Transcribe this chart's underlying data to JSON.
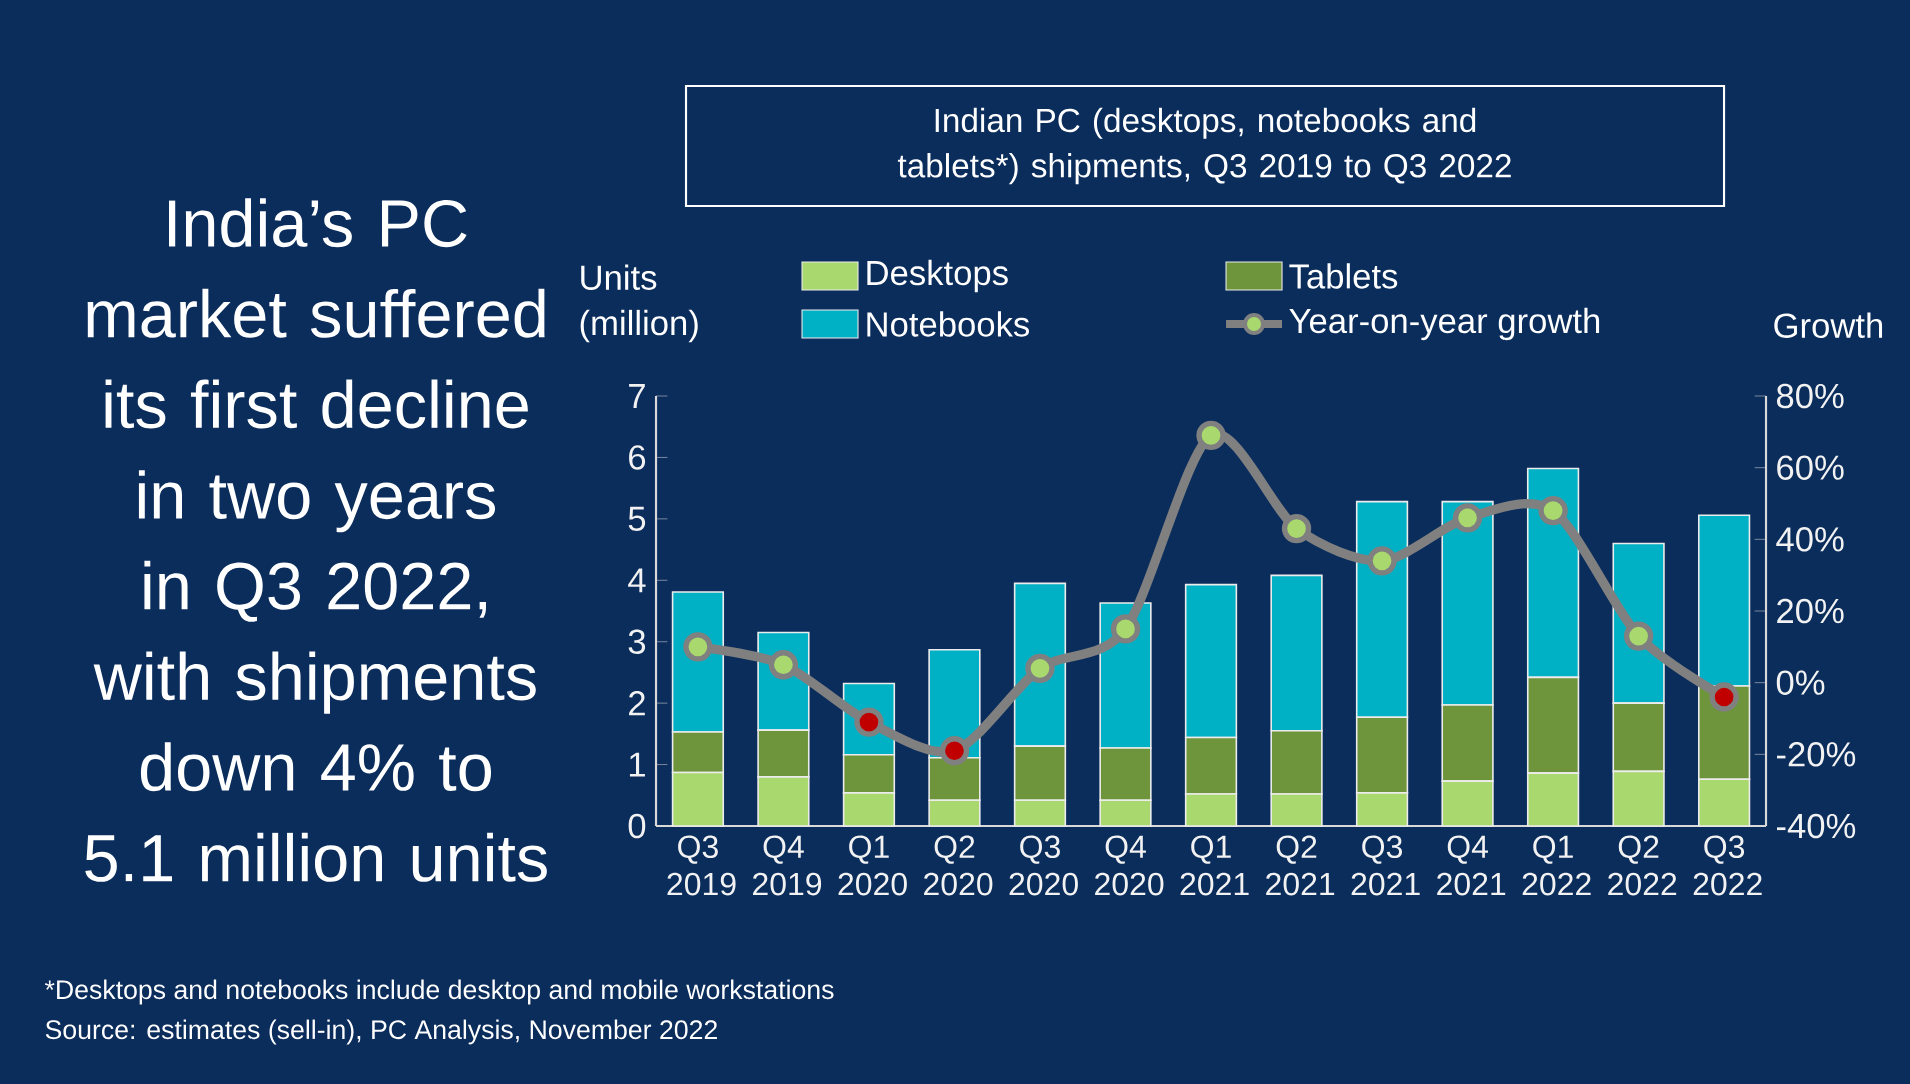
{
  "chart_data": {
    "type": "bar",
    "title": "Indian PC (desktops, notebooks and tablets*) shipments, Q3 2019 to Q3 2022",
    "subtitle": "India’s PC market suffered its first decline in two years in Q3 2022, with shipments down 4% to 5.1 million units",
    "ylabel": "Units (million)",
    "y2label": "Growth",
    "categories": [
      "Q3 2019",
      "Q4 2019",
      "Q1 2020",
      "Q2 2020",
      "Q3 2020",
      "Q4 2020",
      "Q1 2021",
      "Q2 2021",
      "Q3 2021",
      "Q4 2021",
      "Q1 2022",
      "Q2 2022",
      "Q3 2022"
    ],
    "stacked": true,
    "series": [
      {
        "name": "Desktops",
        "color": "#a9d86e",
        "values": [
          0.87,
          0.8,
          0.54,
          0.42,
          0.42,
          0.42,
          0.52,
          0.52,
          0.54,
          0.73,
          0.86,
          0.89,
          0.76
        ]
      },
      {
        "name": "Tablets",
        "color": "#6e953b",
        "values": [
          0.66,
          0.76,
          0.62,
          0.69,
          0.88,
          0.85,
          0.92,
          1.03,
          1.23,
          1.24,
          1.56,
          1.11,
          1.52
        ]
      },
      {
        "name": "Notebooks",
        "color": "#00b0c4",
        "values": [
          2.28,
          1.59,
          1.16,
          1.76,
          2.65,
          2.36,
          2.49,
          2.53,
          3.51,
          3.31,
          3.4,
          2.6,
          2.78
        ]
      },
      {
        "name": "Year-on-year growth",
        "type": "line",
        "axis": "y2",
        "color": "#808080",
        "marker": "circle",
        "values": [
          10,
          5,
          -11,
          -19,
          4,
          15,
          69,
          43,
          34,
          46,
          48,
          13,
          -4
        ],
        "colors": [
          "#a9d86e",
          "#a9d86e",
          "#c00000",
          "#c00000",
          "#a9d86e",
          "#a9d86e",
          "#a9d86e",
          "#a9d86e",
          "#a9d86e",
          "#a9d86e",
          "#a9d86e",
          "#a9d86e",
          "#c00000"
        ]
      }
    ],
    "ylim": [
      0,
      7
    ],
    "yticks": [
      0,
      1,
      2,
      3,
      4,
      5,
      6,
      7
    ],
    "y2lim": [
      -40,
      80
    ],
    "y2ticks": [
      {
        "value": -40,
        "label": "-40%"
      },
      {
        "value": -20,
        "label": "-20%"
      },
      {
        "value": 0,
        "label": "0%"
      },
      {
        "value": 20,
        "label": "20%"
      },
      {
        "value": 40,
        "label": "40%"
      },
      {
        "value": 60,
        "label": "60%"
      },
      {
        "value": 80,
        "label": "80%"
      }
    ],
    "legend": "top",
    "grid": false,
    "annotations": [
      "*Desktops and notebooks include desktop and mobile workstations",
      "Source: estimates (sell-in), PC Analysis, November 2022"
    ]
  }
}
